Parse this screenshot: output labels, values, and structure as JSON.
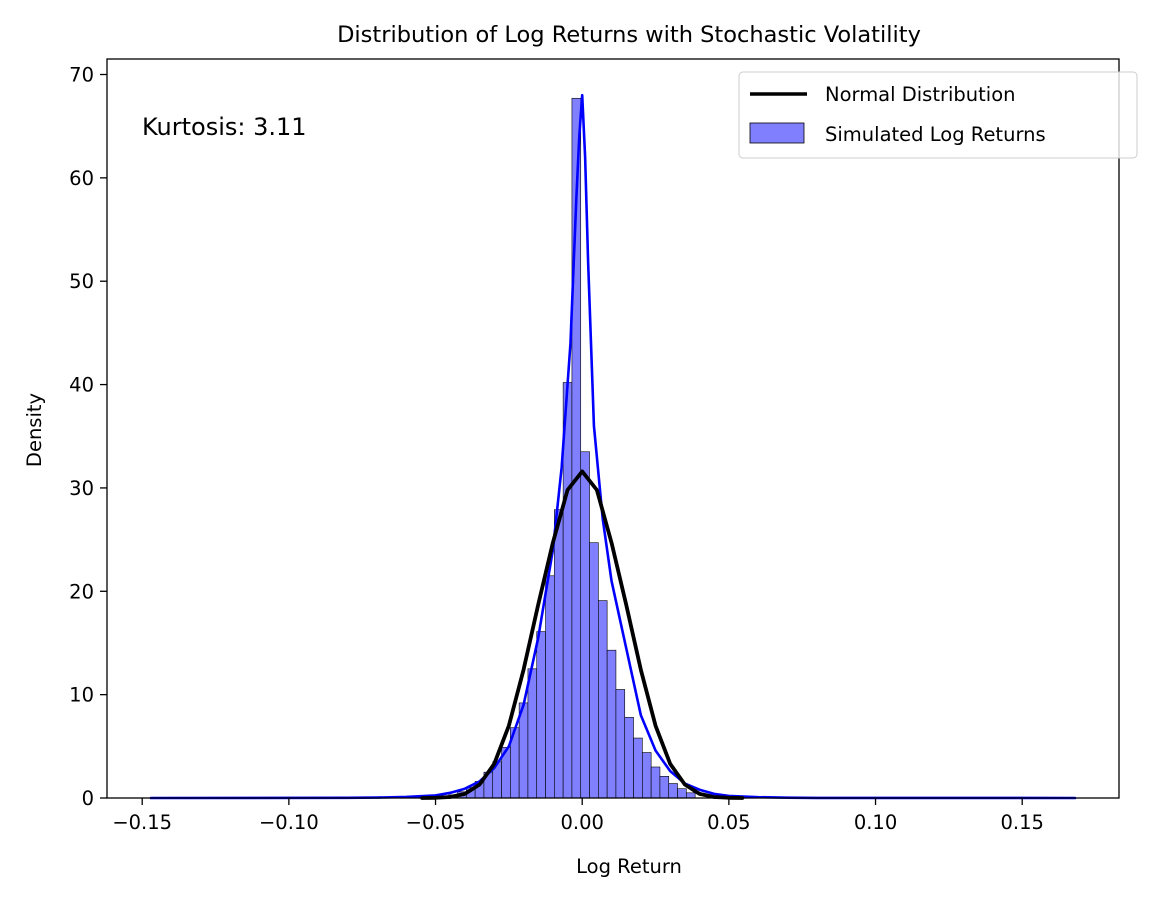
{
  "chart_data": {
    "type": "histogram",
    "title": "Distribution of Log Returns with Stochastic Volatility",
    "xlabel": "Log Return",
    "ylabel": "Density",
    "xlim": [
      -0.162,
      0.183
    ],
    "ylim": [
      0,
      71.5
    ],
    "xticks": [
      -0.15,
      -0.1,
      -0.05,
      0.0,
      0.05,
      0.1,
      0.15
    ],
    "xtick_labels": [
      "−0.15",
      "−0.10",
      "−0.05",
      "0.00",
      "0.05",
      "0.10",
      "0.15"
    ],
    "yticks": [
      0,
      10,
      20,
      30,
      40,
      50,
      60,
      70
    ],
    "ytick_labels": [
      "0",
      "10",
      "20",
      "30",
      "40",
      "50",
      "60",
      "70"
    ],
    "annotation": "Kurtosis: 3.11",
    "legend": {
      "placement": "top-right",
      "entries": [
        {
          "label": "Normal Distribution",
          "kind": "line",
          "color": "#000000"
        },
        {
          "label": "Simulated Log Returns",
          "kind": "patch",
          "color": "#8080ff"
        }
      ]
    },
    "colors": {
      "histogram_fill": "#8080ff",
      "histogram_edge": "#000000",
      "kde_line": "#0000ff",
      "normal_line": "#000000"
    },
    "histogram": {
      "name": "Simulated Log Returns",
      "bin_edges": [
        -0.0455,
        -0.0425,
        -0.0395,
        -0.0365,
        -0.0335,
        -0.0305,
        -0.0275,
        -0.0245,
        -0.0215,
        -0.0185,
        -0.0155,
        -0.0125,
        -0.0095,
        -0.0065,
        -0.0035,
        -0.0005,
        0.0025,
        0.0055,
        0.0085,
        0.0115,
        0.0145,
        0.0175,
        0.0205,
        0.0235,
        0.0265,
        0.0295,
        0.0325,
        0.0355,
        0.0385
      ],
      "densities": [
        0.3,
        0.6,
        1.0,
        1.6,
        2.5,
        3.5,
        4.9,
        6.8,
        9.2,
        12.5,
        16.1,
        21.5,
        27.9,
        40.2,
        67.7,
        33.5,
        24.7,
        19.1,
        14.3,
        10.5,
        7.8,
        5.8,
        4.4,
        3.0,
        2.1,
        1.4,
        0.9,
        0.5
      ]
    },
    "series": [
      {
        "name": "Normal Distribution",
        "type": "line",
        "color": "#000000",
        "x": [
          -0.0546,
          -0.05,
          -0.045,
          -0.04,
          -0.035,
          -0.03,
          -0.025,
          -0.02,
          -0.015,
          -0.01,
          -0.005,
          0.0,
          0.005,
          0.01,
          0.015,
          0.02,
          0.025,
          0.03,
          0.035,
          0.04,
          0.045,
          0.05,
          0.0546
        ],
        "y": [
          0.0,
          0.02,
          0.1,
          0.4,
          1.3,
          3.3,
          7.0,
          12.4,
          18.7,
          24.7,
          29.8,
          31.6,
          29.8,
          24.7,
          18.7,
          12.4,
          7.0,
          3.3,
          1.3,
          0.4,
          0.1,
          0.02,
          0.0
        ]
      },
      {
        "type": "line",
        "color": "#0000ff",
        "x": [
          -0.147,
          -0.08,
          -0.07,
          -0.06,
          -0.05,
          -0.045,
          -0.04,
          -0.035,
          -0.03,
          -0.025,
          -0.02,
          -0.015,
          -0.01,
          -0.007,
          -0.004,
          -0.002,
          -0.001,
          0.0,
          0.001,
          0.002,
          0.004,
          0.007,
          0.01,
          0.015,
          0.02,
          0.025,
          0.03,
          0.035,
          0.04,
          0.045,
          0.05,
          0.06,
          0.07,
          0.08,
          0.168
        ],
        "y": [
          0.0,
          0.02,
          0.04,
          0.1,
          0.25,
          0.5,
          0.9,
          1.6,
          2.9,
          5.0,
          9.0,
          15.5,
          24.0,
          32.0,
          44.0,
          58.0,
          64.0,
          68.0,
          62.0,
          52.0,
          36.0,
          27.0,
          21.0,
          14.5,
          8.0,
          4.6,
          2.6,
          1.4,
          0.8,
          0.4,
          0.2,
          0.08,
          0.03,
          0.01,
          0.0
        ]
      }
    ]
  }
}
